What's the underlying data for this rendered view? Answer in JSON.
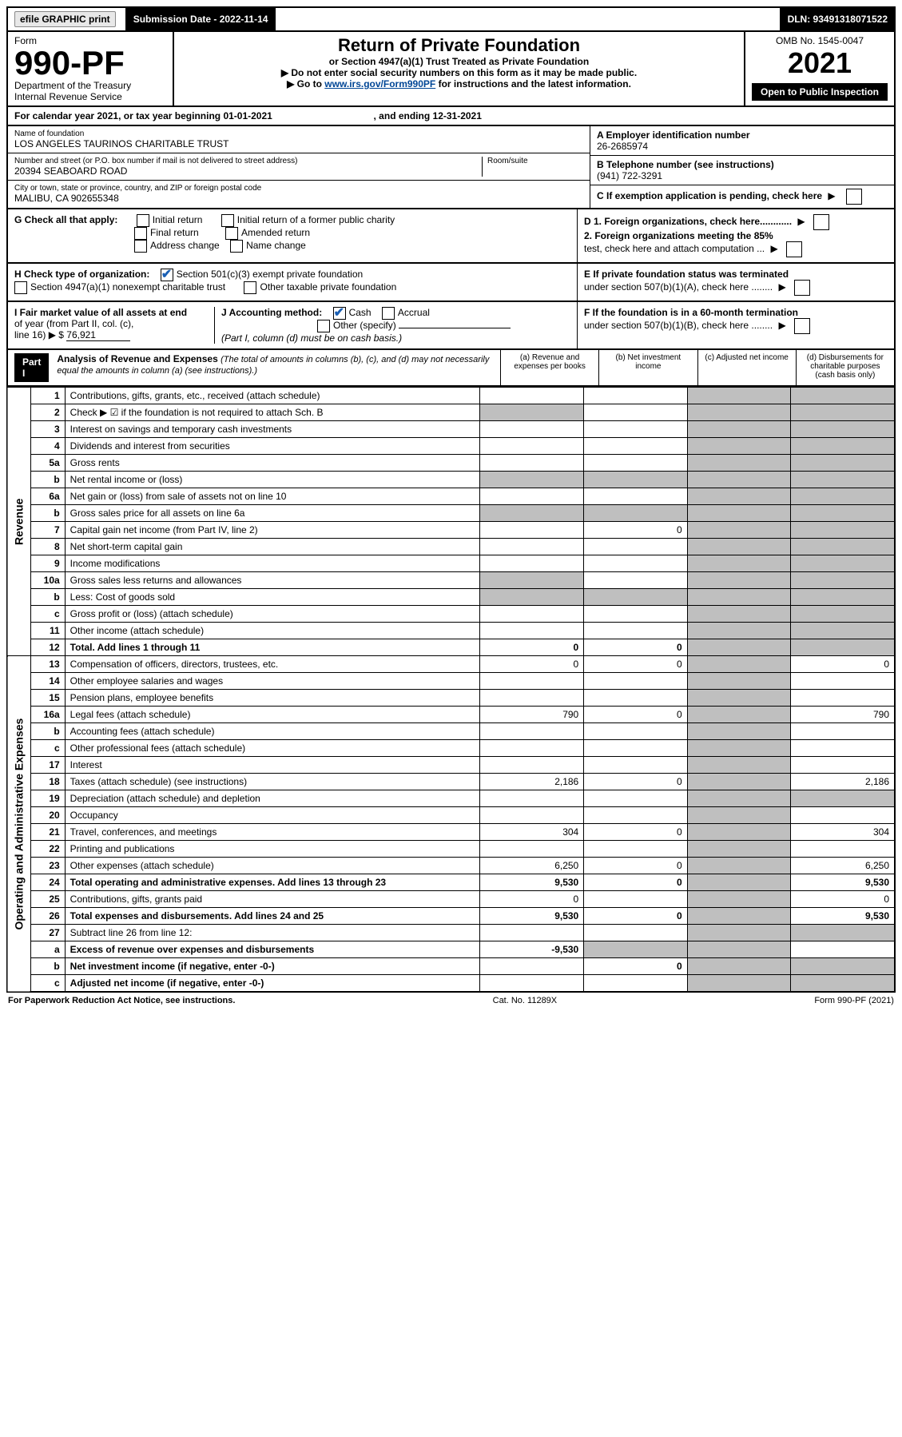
{
  "topbar": {
    "efile_label": "efile GRAPHIC print",
    "submission_label": "Submission Date - 2022-11-14",
    "dln_label": "DLN: 93491318071522"
  },
  "header": {
    "form_label": "Form",
    "form_number": "990-PF",
    "dept1": "Department of the Treasury",
    "dept2": "Internal Revenue Service",
    "title": "Return of Private Foundation",
    "subtitle": "or Section 4947(a)(1) Trust Treated as Private Foundation",
    "note1": "▶ Do not enter social security numbers on this form as it may be made public.",
    "note2_pre": "▶ Go to ",
    "note2_link": "www.irs.gov/Form990PF",
    "note2_post": " for instructions and the latest information.",
    "omb": "OMB No. 1545-0047",
    "year": "2021",
    "open_public": "Open to Public Inspection"
  },
  "calendar": {
    "text_a": "For calendar year 2021, or tax year beginning 01-01-2021",
    "text_b": ", and ending 12-31-2021"
  },
  "foundation": {
    "name_label": "Name of foundation",
    "name": "LOS ANGELES TAURINOS CHARITABLE TRUST",
    "addr_label": "Number and street (or P.O. box number if mail is not delivered to street address)",
    "addr": "20394 SEABOARD ROAD",
    "room_label": "Room/suite",
    "city_label": "City or town, state or province, country, and ZIP or foreign postal code",
    "city": "MALIBU, CA  902655348",
    "a_label": "A Employer identification number",
    "a_value": "26-2685974",
    "b_label": "B Telephone number (see instructions)",
    "b_value": "(941) 722-3291",
    "c_label": "C If exemption application is pending, check here"
  },
  "g": {
    "label": "G Check all that apply:",
    "opts": [
      "Initial return",
      "Initial return of a former public charity",
      "Final return",
      "Amended return",
      "Address change",
      "Name change"
    ]
  },
  "d": {
    "d1": "D 1. Foreign organizations, check here............",
    "d2a": "2. Foreign organizations meeting the 85%",
    "d2b": "test, check here and attach computation ..."
  },
  "h": {
    "label": "H Check type of organization:",
    "opt1": "Section 501(c)(3) exempt private foundation",
    "opt2": "Section 4947(a)(1) nonexempt charitable trust",
    "opt3": "Other taxable private foundation"
  },
  "e": {
    "line1": "E  If private foundation status was terminated",
    "line2": "under section 507(b)(1)(A), check here ........"
  },
  "i": {
    "label_a": "I Fair market value of all assets at end",
    "label_b": "of year (from Part II, col. (c),",
    "label_c": "line 16) ▶ $",
    "value": "76,921"
  },
  "j": {
    "label": "J Accounting method:",
    "cash": "Cash",
    "accrual": "Accrual",
    "other": "Other (specify)",
    "note": "(Part I, column (d) must be on cash basis.)"
  },
  "f": {
    "line1": "F  If the foundation is in a 60-month termination",
    "line2": "under section 507(b)(1)(B), check here ........"
  },
  "part1": {
    "label": "Part I",
    "title": "Analysis of Revenue and Expenses",
    "note": " (The total of amounts in columns (b), (c), and (d) may not necessarily equal the amounts in column (a) (see instructions).)",
    "cols": {
      "a": "(a) Revenue and expenses per books",
      "b": "(b) Net investment income",
      "c": "(c) Adjusted net income",
      "d": "(d) Disbursements for charitable purposes (cash basis only)"
    }
  },
  "sections": {
    "revenue": "Revenue",
    "expenses": "Operating and Administrative Expenses"
  },
  "rows": [
    {
      "n": "1",
      "d": "Contributions, gifts, grants, etc., received (attach schedule)"
    },
    {
      "n": "2",
      "d": "Check ▶ ☑ if the foundation is not required to attach Sch. B"
    },
    {
      "n": "3",
      "d": "Interest on savings and temporary cash investments"
    },
    {
      "n": "4",
      "d": "Dividends and interest from securities"
    },
    {
      "n": "5a",
      "d": "Gross rents"
    },
    {
      "n": "b",
      "d": "Net rental income or (loss)"
    },
    {
      "n": "6a",
      "d": "Net gain or (loss) from sale of assets not on line 10"
    },
    {
      "n": "b",
      "d": "Gross sales price for all assets on line 6a"
    },
    {
      "n": "7",
      "d": "Capital gain net income (from Part IV, line 2)",
      "b": "0"
    },
    {
      "n": "8",
      "d": "Net short-term capital gain"
    },
    {
      "n": "9",
      "d": "Income modifications"
    },
    {
      "n": "10a",
      "d": "Gross sales less returns and allowances"
    },
    {
      "n": "b",
      "d": "Less: Cost of goods sold"
    },
    {
      "n": "c",
      "d": "Gross profit or (loss) (attach schedule)"
    },
    {
      "n": "11",
      "d": "Other income (attach schedule)"
    },
    {
      "n": "12",
      "d": "Total. Add lines 1 through 11",
      "a": "0",
      "b": "0",
      "bold": true
    },
    {
      "n": "13",
      "d": "Compensation of officers, directors, trustees, etc.",
      "a": "0",
      "b": "0",
      "dd": "0"
    },
    {
      "n": "14",
      "d": "Other employee salaries and wages"
    },
    {
      "n": "15",
      "d": "Pension plans, employee benefits"
    },
    {
      "n": "16a",
      "d": "Legal fees (attach schedule)",
      "a": "790",
      "b": "0",
      "dd": "790"
    },
    {
      "n": "b",
      "d": "Accounting fees (attach schedule)"
    },
    {
      "n": "c",
      "d": "Other professional fees (attach schedule)"
    },
    {
      "n": "17",
      "d": "Interest"
    },
    {
      "n": "18",
      "d": "Taxes (attach schedule) (see instructions)",
      "a": "2,186",
      "b": "0",
      "dd": "2,186"
    },
    {
      "n": "19",
      "d": "Depreciation (attach schedule) and depletion"
    },
    {
      "n": "20",
      "d": "Occupancy"
    },
    {
      "n": "21",
      "d": "Travel, conferences, and meetings",
      "a": "304",
      "b": "0",
      "dd": "304"
    },
    {
      "n": "22",
      "d": "Printing and publications"
    },
    {
      "n": "23",
      "d": "Other expenses (attach schedule)",
      "a": "6,250",
      "b": "0",
      "dd": "6,250"
    },
    {
      "n": "24",
      "d": "Total operating and administrative expenses. Add lines 13 through 23",
      "a": "9,530",
      "b": "0",
      "dd": "9,530",
      "bold": true
    },
    {
      "n": "25",
      "d": "Contributions, gifts, grants paid",
      "a": "0",
      "dd": "0"
    },
    {
      "n": "26",
      "d": "Total expenses and disbursements. Add lines 24 and 25",
      "a": "9,530",
      "b": "0",
      "dd": "9,530",
      "bold": true
    },
    {
      "n": "27",
      "d": "Subtract line 26 from line 12:"
    },
    {
      "n": "a",
      "d": "Excess of revenue over expenses and disbursements",
      "a": "-9,530",
      "bold": true
    },
    {
      "n": "b",
      "d": "Net investment income (if negative, enter -0-)",
      "b": "0",
      "bold": true
    },
    {
      "n": "c",
      "d": "Adjusted net income (if negative, enter -0-)",
      "bold": true
    }
  ],
  "footer": {
    "left": "For Paperwork Reduction Act Notice, see instructions.",
    "mid": "Cat. No. 11289X",
    "right": "Form 990-PF (2021)"
  },
  "colors": {
    "black": "#000000",
    "shade": "#bfbfbf",
    "link": "#004696",
    "check": "#1a5fb4"
  }
}
